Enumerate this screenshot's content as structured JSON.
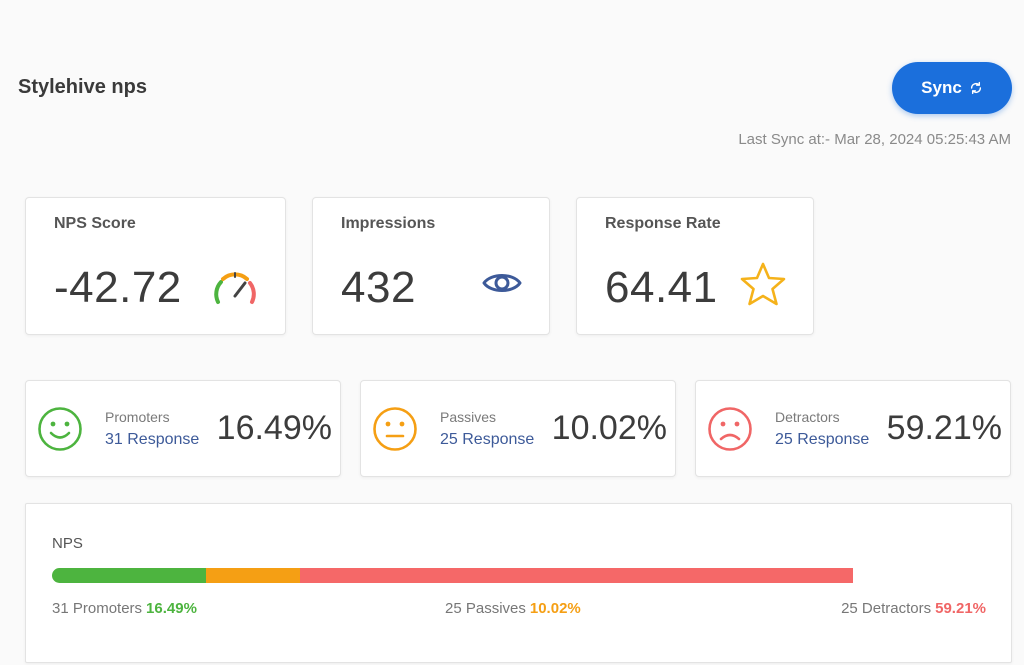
{
  "header": {
    "title": "Stylehive nps",
    "sync_label": "Sync",
    "last_sync": "Last Sync at:- Mar 28, 2024 05:25:43 AM"
  },
  "stats": [
    {
      "label": "NPS Score",
      "value": "-42.72",
      "icon": "speedometer-icon"
    },
    {
      "label": "Impressions",
      "value": "432",
      "icon": "eye-icon"
    },
    {
      "label": "Response Rate",
      "value": "64.41",
      "icon": "star-icon"
    }
  ],
  "segments": [
    {
      "name": "Promoters",
      "responses": "31 Response",
      "percent": "16.49%",
      "icon": "smile-face-icon",
      "color": "#4db43f"
    },
    {
      "name": "Passives",
      "responses": "25 Response",
      "percent": "10.02%",
      "icon": "neutral-face-icon",
      "color": "#f59f14"
    },
    {
      "name": "Detractors",
      "responses": "25 Response",
      "percent": "59.21%",
      "icon": "sad-face-icon",
      "color": "#f06666"
    }
  ],
  "nps_bar": {
    "label": "NPS",
    "segments": [
      {
        "key": "promoters",
        "fraction": 0.1649,
        "color": "#4db43f"
      },
      {
        "key": "passives",
        "fraction": 0.1002,
        "color": "#f59f14"
      },
      {
        "key": "detractors",
        "fraction": 0.5921,
        "color": "#f56868"
      }
    ],
    "legend": {
      "promoters_text": "31 Promoters",
      "promoters_pct": "16.49%",
      "passives_text": "25 Passives",
      "passives_pct": "10.02%",
      "detractors_text": "25 Detractors",
      "detractors_pct": "59.21%"
    }
  }
}
